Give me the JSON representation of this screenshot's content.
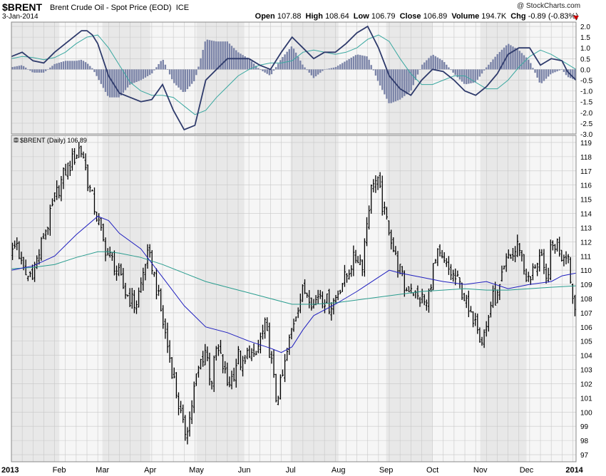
{
  "header": {
    "symbol": "$BRENT",
    "name": "Brent Crude Oil - Spot Price (EOD)",
    "exchange": "ICE",
    "date": "3-Jan-2014",
    "watermark": "@ StockCharts.com",
    "open_label": "Open",
    "open": "107.88",
    "high_label": "High",
    "high": "108.64",
    "low_label": "Low",
    "low": "106.79",
    "close_label": "Close",
    "close": "106.89",
    "volume_label": "Volume",
    "volume": "194.7K",
    "chg_label": "Chg",
    "chg": "-0.89 (-0.83%)"
  },
  "colors": {
    "price_bars": "#000000",
    "ma_blue": "#1f1fbf",
    "ma_teal": "#2a9d8f",
    "macd_line": "#2e3a6b",
    "signal_line": "#3aa8a0",
    "histogram": "#7b84a8",
    "band": "#e8e8e8",
    "grid": "#c8c8c8"
  },
  "chart_data": [
    {
      "type": "line",
      "panel": "macd",
      "ylim": [
        -3.0,
        2.2
      ],
      "yticks": [
        -3.0,
        -2.5,
        -2.0,
        -1.5,
        -1.0,
        -0.5,
        0.0,
        0.5,
        1.0,
        1.5,
        2.0
      ],
      "x_domain": [
        0,
        52.3
      ],
      "series": [
        {
          "role": "macd",
          "x": [
            0,
            1,
            2,
            3,
            4,
            5,
            6,
            6.5,
            7,
            7.5,
            8,
            9,
            10,
            11,
            12,
            13,
            14,
            15,
            16,
            17,
            18,
            19,
            20,
            21,
            22,
            23,
            24,
            25,
            26,
            27,
            28,
            29,
            30,
            31,
            32,
            33,
            34,
            35,
            36,
            37,
            38,
            39,
            40,
            41,
            42,
            43,
            44,
            45,
            46,
            47,
            48,
            49,
            50,
            51,
            51.5,
            52.3
          ],
          "values": [
            0.6,
            0.8,
            0.4,
            0.3,
            0.8,
            1.2,
            1.6,
            1.8,
            1.8,
            1.6,
            1.2,
            -0.3,
            -1.1,
            -1.3,
            -1.5,
            -1.4,
            -0.7,
            -1.9,
            -2.8,
            -2.6,
            -0.5,
            0.0,
            0.5,
            0.5,
            0.5,
            0.2,
            0.0,
            0.8,
            1.5,
            1.0,
            0.5,
            0.8,
            0.8,
            1.2,
            1.7,
            2.0,
            1.0,
            -0.3,
            -0.9,
            -1.2,
            -0.5,
            0.0,
            -0.1,
            -0.5,
            -1.0,
            -1.2,
            -0.8,
            -0.2,
            0.7,
            1.0,
            1.0,
            0.2,
            0.5,
            0.4,
            -0.1,
            -0.5
          ]
        },
        {
          "role": "signal",
          "x": [
            0,
            1,
            2,
            3,
            4,
            5,
            6,
            7,
            8,
            9,
            10,
            11,
            12,
            13,
            14,
            15,
            16,
            17,
            18,
            19,
            20,
            21,
            22,
            23,
            24,
            25,
            26,
            27,
            28,
            29,
            30,
            31,
            32,
            33,
            34,
            35,
            36,
            37,
            38,
            39,
            40,
            41,
            42,
            43,
            44,
            45,
            46,
            47,
            48,
            49,
            50,
            51,
            52.3
          ],
          "values": [
            0.5,
            0.6,
            0.55,
            0.45,
            0.55,
            0.8,
            1.2,
            1.5,
            1.6,
            1.0,
            0.2,
            -0.6,
            -1.0,
            -1.2,
            -1.2,
            -1.3,
            -1.7,
            -2.1,
            -1.9,
            -1.3,
            -0.8,
            -0.3,
            0.0,
            0.2,
            0.3,
            0.3,
            0.4,
            0.8,
            0.9,
            0.8,
            0.7,
            0.8,
            1.0,
            1.4,
            1.6,
            1.3,
            0.5,
            -0.2,
            -0.7,
            -0.7,
            -0.5,
            -0.3,
            -0.3,
            -0.6,
            -0.9,
            -0.9,
            -0.5,
            0.1,
            0.6,
            0.9,
            0.7,
            0.4,
            0.0
          ]
        }
      ]
    },
    {
      "type": "bar",
      "panel": "price",
      "title": "$BRENT (Daily) 106.89",
      "ylim": [
        96.5,
        119.5
      ],
      "yticks": [
        97,
        98,
        99,
        100,
        101,
        102,
        103,
        104,
        105,
        106,
        107,
        108,
        109,
        110,
        111,
        112,
        113,
        114,
        115,
        116,
        117,
        118,
        119
      ],
      "x_domain": [
        0,
        52.3
      ],
      "x_ticks": [
        {
          "label": "2013",
          "x": 0.0,
          "bold": true
        },
        {
          "label": "Feb",
          "x": 4.43
        },
        {
          "label": "Mar",
          "x": 8.43
        },
        {
          "label": "Apr",
          "x": 12.86
        },
        {
          "label": "May",
          "x": 17.14
        },
        {
          "label": "Jun",
          "x": 21.57
        },
        {
          "label": "Jul",
          "x": 25.86
        },
        {
          "label": "Aug",
          "x": 30.29
        },
        {
          "label": "Sep",
          "x": 34.71
        },
        {
          "label": "Oct",
          "x": 39.0
        },
        {
          "label": "Nov",
          "x": 43.43
        },
        {
          "label": "Dec",
          "x": 47.71
        },
        {
          "label": "2014",
          "x": 52.14,
          "bold": true
        }
      ],
      "close_path": {
        "x": [
          0,
          0.5,
          1,
          1.5,
          2,
          2.5,
          3,
          3.5,
          4,
          4.5,
          5,
          5.5,
          6,
          6.3,
          6.7,
          7,
          7.5,
          8,
          8.5,
          9,
          9.5,
          10,
          10.5,
          11,
          11.5,
          12,
          12.5,
          13,
          13.5,
          14,
          14.5,
          15,
          15.5,
          16,
          16.5,
          17,
          17.5,
          18,
          18.5,
          19,
          19.5,
          20,
          20.5,
          21,
          21.5,
          22,
          22.5,
          23,
          23.5,
          24,
          24.5,
          25,
          25.5,
          26,
          26.5,
          27,
          27.5,
          28,
          28.5,
          29,
          29.5,
          30,
          30.5,
          31,
          31.5,
          32,
          32.5,
          33,
          33.5,
          34,
          34.5,
          35,
          35.5,
          36,
          36.5,
          37,
          37.5,
          38,
          38.5,
          39,
          39.5,
          40,
          40.5,
          41,
          41.5,
          42,
          42.5,
          43,
          43.5,
          44,
          44.5,
          45,
          45.5,
          46,
          46.5,
          47,
          47.5,
          48,
          48.5,
          49,
          49.5,
          50,
          50.5,
          51,
          51.5,
          52,
          52.3
        ],
        "values": [
          111,
          112,
          110,
          109.5,
          110,
          111,
          112.5,
          113.5,
          115,
          116,
          117,
          117.5,
          118.2,
          118.6,
          118,
          116.5,
          115,
          113.5,
          112,
          111,
          110.5,
          109.5,
          108.5,
          108,
          107.5,
          109,
          111,
          110.5,
          108.5,
          106.5,
          104.5,
          102.5,
          100.5,
          98.5,
          99.5,
          102,
          103.5,
          104.5,
          102,
          104.5,
          103.5,
          102,
          102.5,
          104,
          103,
          104.5,
          103.5,
          105,
          106,
          104,
          101,
          102,
          104,
          106,
          107.5,
          108.5,
          108.5,
          107.5,
          108.5,
          108,
          107.5,
          108,
          109,
          109.5,
          110.5,
          111,
          110.5,
          114,
          116.5,
          116,
          114,
          113,
          111,
          110,
          108.5,
          109,
          108,
          108,
          107.5,
          110,
          111,
          110.5,
          110,
          109.5,
          109,
          108,
          106.5,
          107,
          105,
          106,
          108,
          108,
          109.5,
          111,
          111,
          112,
          110,
          109,
          110.5,
          111,
          109,
          111.5,
          112,
          111,
          111.5,
          108,
          107
        ]
      },
      "ma_50": {
        "x": [
          0,
          2,
          4,
          6,
          8,
          9,
          10,
          12,
          14,
          16,
          18,
          20,
          22,
          24,
          25,
          26,
          27,
          28,
          30,
          32,
          33,
          34,
          35,
          36,
          38,
          40,
          42,
          44,
          46,
          48,
          50,
          51,
          52.3
        ],
        "values": [
          110,
          110.3,
          111,
          112.5,
          113.8,
          113.5,
          112.6,
          111.5,
          109.5,
          107.5,
          106,
          105.6,
          105,
          104.5,
          104.2,
          104.6,
          105.8,
          106.8,
          107.6,
          108.5,
          109,
          109.5,
          110,
          109.8,
          109.5,
          109.2,
          109,
          109.2,
          108.7,
          109,
          109.2,
          109.6,
          109.8
        ]
      },
      "ma_200": {
        "x": [
          0,
          2,
          4,
          6,
          8,
          9,
          10,
          12,
          14,
          16,
          18,
          20,
          22,
          24,
          26,
          28,
          30,
          32,
          34,
          36,
          38,
          40,
          42,
          44,
          46,
          48,
          50,
          52.3
        ],
        "values": [
          110.1,
          110.2,
          110.4,
          110.9,
          111.3,
          111.3,
          111.2,
          110.9,
          110.4,
          109.8,
          109.2,
          108.8,
          108.4,
          108,
          107.6,
          107.6,
          107.7,
          107.9,
          108.1,
          108.3,
          108.5,
          108.6,
          108.7,
          108.6,
          108.6,
          108.7,
          108.8,
          108.9
        ]
      }
    }
  ]
}
